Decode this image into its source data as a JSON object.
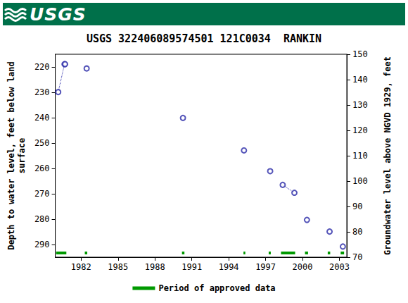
{
  "header": {
    "logo": "USGS"
  },
  "chart_data": {
    "type": "scatter",
    "title": "USGS 322406089574501 121C0034  RANKIN",
    "ylabel": "Depth to water level, feet below land\nsurface",
    "y2label": "Groundwater level above NGVD 1929, feet",
    "x": [
      1980.14,
      1980.65,
      1980.7,
      1982.45,
      1990.28,
      1995.24,
      1997.37,
      1998.39,
      1999.34,
      2000.36,
      2002.2,
      2003.28
    ],
    "series": [
      {
        "type": "scatter",
        "marker": "circle",
        "color": "#2a2aa8",
        "values": [
          229.9,
          218.9,
          218.9,
          220.6,
          240.1,
          252.9,
          261.1,
          266.5,
          269.6,
          280.3,
          284.9,
          290.8
        ]
      },
      {
        "type": "line",
        "line_style": "dotted",
        "color": "#2a2aa8",
        "values": [
          229.9,
          218.9,
          218.9,
          null,
          null,
          null,
          null,
          266.5,
          269.6,
          null,
          null,
          null
        ]
      }
    ],
    "approved_periods": {
      "name": "Period of approved data",
      "color": "#009900",
      "ranges": [
        [
          1979.97,
          1980.8
        ],
        [
          1982.3,
          1982.5
        ],
        [
          1990.2,
          1990.4
        ],
        [
          1995.2,
          1995.35
        ],
        [
          1997.25,
          1997.42
        ],
        [
          1998.25,
          1999.4
        ],
        [
          2000.2,
          2000.45
        ],
        [
          2002.05,
          2002.25
        ],
        [
          2003.1,
          2003.38
        ]
      ]
    },
    "xlim": [
      1979.9,
      2003.6
    ],
    "xticks": [
      1982,
      1985,
      1988,
      1991,
      1994,
      1997,
      2000,
      2003
    ],
    "ylim": [
      215,
      295
    ],
    "yticks": [
      220,
      230,
      240,
      250,
      260,
      270,
      280,
      290
    ],
    "y2lim": [
      70,
      150
    ],
    "y2ticks": [
      70,
      80,
      90,
      100,
      110,
      120,
      130,
      140,
      150
    ],
    "grid": false,
    "legend": "bottom"
  }
}
